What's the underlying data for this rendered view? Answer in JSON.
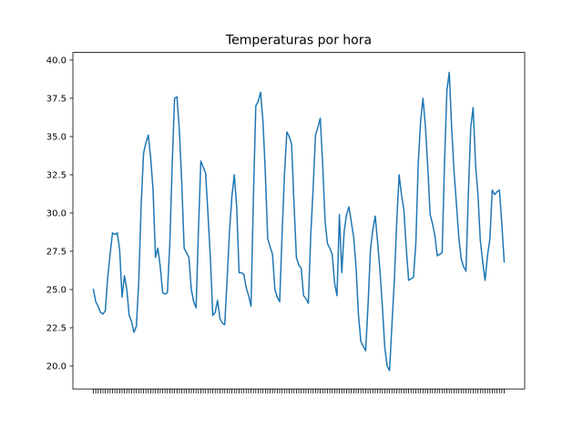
{
  "chart_data": {
    "type": "line",
    "title": "Temperaturas por hora",
    "xlabel": "",
    "ylabel": "",
    "ylim": [
      18.5,
      40.5
    ],
    "yticks": [
      20.0,
      22.5,
      25.0,
      27.5,
      30.0,
      32.5,
      35.0,
      37.5,
      40.0
    ],
    "ytick_labels": [
      "20.0",
      "22.5",
      "25.0",
      "27.5",
      "30.0",
      "32.5",
      "35.0",
      "37.5",
      "40.0"
    ],
    "grid": false,
    "line_color": "#1f77b4",
    "series": [
      {
        "values": [
          25.0,
          24.2,
          23.9,
          23.5,
          23.4,
          23.6,
          25.8,
          27.3,
          28.7,
          28.6,
          28.7,
          27.6,
          24.5,
          25.9,
          25.0,
          23.3,
          22.9,
          22.2,
          22.6,
          25.5,
          30.5,
          33.9,
          34.6,
          35.1,
          33.6,
          31.5,
          27.1,
          27.7,
          26.5,
          24.8,
          24.7,
          24.8,
          28.0,
          33.2,
          37.5,
          37.6,
          35.4,
          32.0,
          27.7,
          27.4,
          27.1,
          25.0,
          24.2,
          23.8,
          28.9,
          33.4,
          33.0,
          32.6,
          29.9,
          27.0,
          23.3,
          23.5,
          24.3,
          23.1,
          22.8,
          22.7,
          25.7,
          28.8,
          31.1,
          32.5,
          30.4,
          26.1,
          26.1,
          26.0,
          25.1,
          24.6,
          23.9,
          31.0,
          37.0,
          37.3,
          37.9,
          36.0,
          32.6,
          28.3,
          27.8,
          27.3,
          25.0,
          24.5,
          24.2,
          28.6,
          32.5,
          35.3,
          35.0,
          34.5,
          30.6,
          27.1,
          26.6,
          26.4,
          24.6,
          24.4,
          24.1,
          28.5,
          31.6,
          35.1,
          35.6,
          36.2,
          33.2,
          29.5,
          28.0,
          27.7,
          27.3,
          25.4,
          24.6,
          29.9,
          26.1,
          28.8,
          29.9,
          30.4,
          29.4,
          28.4,
          26.4,
          23.3,
          21.6,
          21.3,
          21.0,
          24.0,
          27.6,
          28.9,
          29.8,
          28.1,
          26.2,
          23.9,
          21.2,
          20.0,
          19.7,
          22.7,
          25.6,
          29.4,
          32.5,
          31.2,
          30.2,
          27.7,
          25.6,
          25.7,
          25.8,
          28.0,
          33.2,
          36.0,
          37.5,
          35.7,
          33.0,
          29.9,
          29.3,
          28.5,
          27.2,
          27.3,
          27.4,
          33.2,
          38.0,
          39.2,
          35.6,
          32.7,
          30.6,
          28.4,
          27.0,
          26.5,
          26.2,
          31.3,
          35.6,
          36.9,
          33.2,
          31.2,
          28.2,
          26.8,
          25.6,
          27.2,
          28.3,
          31.5,
          31.2,
          31.4,
          31.5,
          29.3,
          26.8
        ]
      }
    ]
  }
}
